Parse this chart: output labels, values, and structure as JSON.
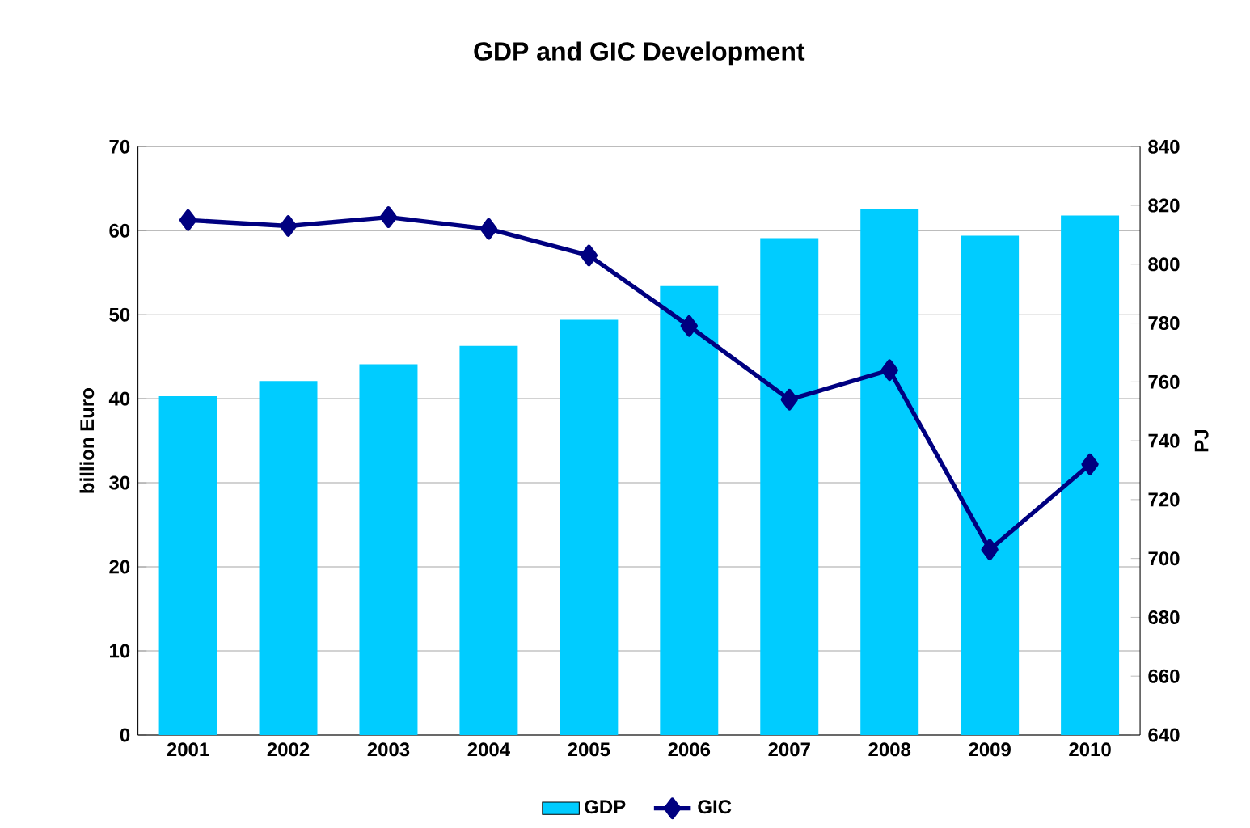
{
  "chart_data": {
    "type": "bar",
    "title": "GDP and GIC Development",
    "ylabel": "billion Euro",
    "y2label": "PJ",
    "categories": [
      "2001",
      "2002",
      "2003",
      "2004",
      "2005",
      "2006",
      "2007",
      "2008",
      "2009",
      "2010"
    ],
    "series": [
      {
        "name": "GDP",
        "color": "#00ccff",
        "values": [
          40.3,
          42.1,
          44.1,
          46.3,
          49.4,
          53.4,
          59.1,
          62.6,
          59.4,
          61.8
        ]
      },
      {
        "name": "GIC",
        "type": "line",
        "axis": "y2",
        "color": "#000080",
        "marker": "diamond",
        "values": [
          815,
          813,
          816,
          812,
          803,
          779,
          754,
          764,
          703,
          732
        ]
      }
    ],
    "ylim": [
      0,
      70
    ],
    "yticks": [
      0,
      10,
      20,
      30,
      40,
      50,
      60,
      70
    ],
    "y2lim": [
      640,
      840
    ],
    "y2ticks": [
      640,
      660,
      680,
      700,
      720,
      740,
      760,
      780,
      800,
      820,
      840
    ],
    "grid": "y",
    "legend": "bottom"
  }
}
